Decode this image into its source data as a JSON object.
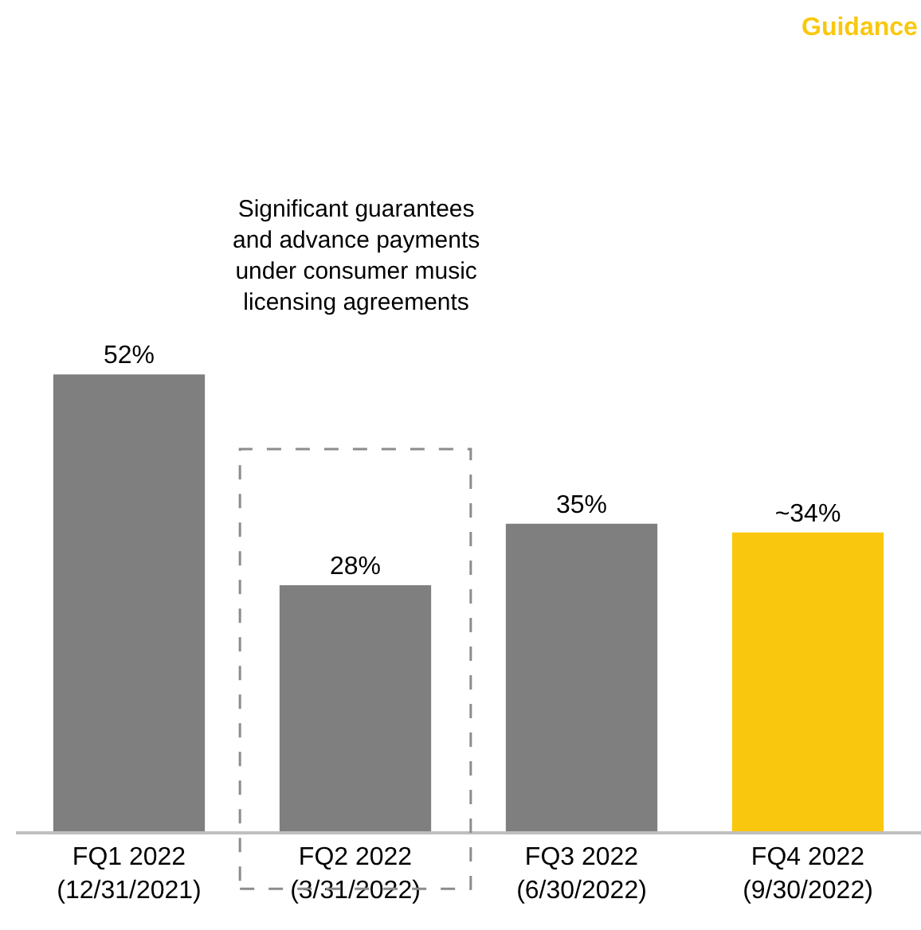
{
  "chart_data": {
    "type": "bar",
    "categories": [
      "FQ1 2022\n(12/31/2021)",
      "FQ2 2022\n(3/31/2022)",
      "FQ3 2022\n(6/30/2022)",
      "FQ4 2022\n(9/30/2022)"
    ],
    "values": [
      52,
      28,
      35,
      34
    ],
    "colors": [
      "#7f7f7f",
      "#7f7f7f",
      "#7f7f7f",
      "#f9c80e"
    ],
    "value_labels": [
      "52%",
      "28%",
      "35%",
      "~34%"
    ],
    "annotations": [
      "Guidance",
      "Significant guarantees\nand advance payments\nunder consumer music\nlicensing agreements"
    ],
    "legend": false
  }
}
